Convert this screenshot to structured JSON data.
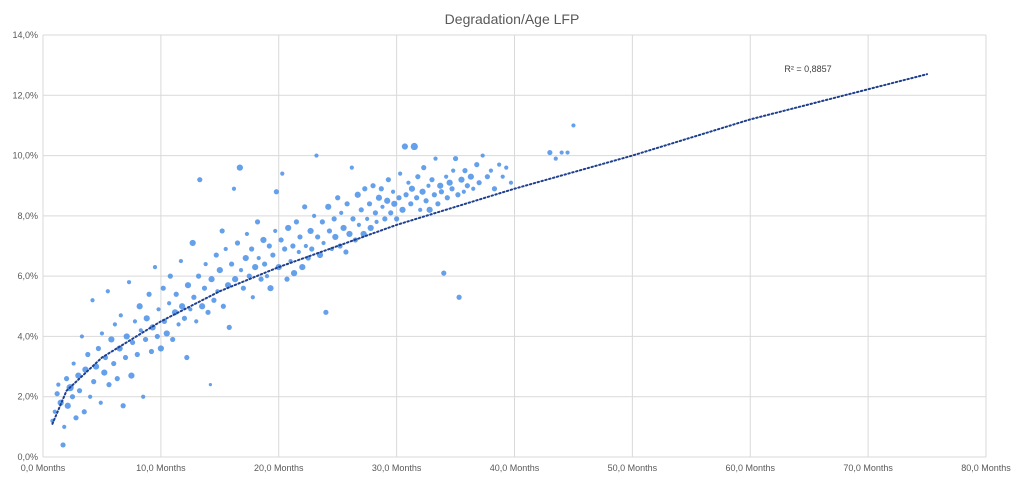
{
  "chart_data": {
    "type": "scatter",
    "title": "Degradation/Age LFP",
    "xlabel": "",
    "ylabel": "",
    "xlim": [
      0,
      80
    ],
    "ylim": [
      0,
      14
    ],
    "x_ticks": [
      0,
      10,
      20,
      30,
      40,
      50,
      60,
      70,
      80
    ],
    "y_ticks": [
      0,
      2,
      4,
      6,
      8,
      10,
      12,
      14
    ],
    "x_tick_labels": [
      "0,0 Months",
      "10,0 Months",
      "20,0 Months",
      "30,0 Months",
      "40,0 Months",
      "50,0 Months",
      "60,0 Months",
      "70,0 Months",
      "80,0 Months"
    ],
    "y_tick_labels": [
      "0,0%",
      "2,0%",
      "4,0%",
      "6,0%",
      "8,0%",
      "10,0%",
      "12,0%",
      "14,0%"
    ],
    "grid": true,
    "legend": "none",
    "point_color": "#4a8fe7",
    "trend_color": "#1f3f8f",
    "trendline": {
      "type": "logarithmic",
      "x": [
        0.8,
        2,
        5,
        10,
        15,
        20,
        25,
        30,
        40,
        50,
        60,
        75
      ],
      "y": [
        1.1,
        2.2,
        3.3,
        4.5,
        5.5,
        6.3,
        7.0,
        7.7,
        8.9,
        10.0,
        11.2,
        12.7
      ]
    },
    "r_squared_label": "R² = 0,8857",
    "points": [
      [
        0.8,
        1.2,
        3
      ],
      [
        1.0,
        1.5,
        3
      ],
      [
        1.2,
        2.1,
        4
      ],
      [
        1.3,
        2.4,
        3
      ],
      [
        1.5,
        1.8,
        5
      ],
      [
        1.7,
        0.4,
        4
      ],
      [
        1.8,
        1.0,
        3
      ],
      [
        2.0,
        2.6,
        4
      ],
      [
        2.1,
        1.7,
        5
      ],
      [
        2.3,
        2.3,
        6
      ],
      [
        2.5,
        2.0,
        4
      ],
      [
        2.6,
        3.1,
        3
      ],
      [
        2.8,
        1.3,
        4
      ],
      [
        3.0,
        2.7,
        5
      ],
      [
        3.1,
        2.2,
        4
      ],
      [
        3.3,
        4.0,
        3
      ],
      [
        3.5,
        1.5,
        4
      ],
      [
        3.6,
        2.9,
        5
      ],
      [
        3.8,
        3.4,
        4
      ],
      [
        4.0,
        2.0,
        3
      ],
      [
        4.2,
        5.2,
        3
      ],
      [
        4.3,
        2.5,
        4
      ],
      [
        4.5,
        3.0,
        5
      ],
      [
        4.7,
        3.6,
        4
      ],
      [
        4.9,
        1.8,
        3
      ],
      [
        5.0,
        4.1,
        3
      ],
      [
        5.2,
        2.8,
        5
      ],
      [
        5.3,
        3.3,
        4
      ],
      [
        5.5,
        5.5,
        3
      ],
      [
        5.6,
        2.4,
        4
      ],
      [
        5.8,
        3.9,
        5
      ],
      [
        6.0,
        3.1,
        4
      ],
      [
        6.1,
        4.4,
        3
      ],
      [
        6.3,
        2.6,
        4
      ],
      [
        6.5,
        3.6,
        5
      ],
      [
        6.6,
        4.7,
        3
      ],
      [
        6.8,
        1.7,
        4
      ],
      [
        7.0,
        3.3,
        4
      ],
      [
        7.1,
        4.0,
        5
      ],
      [
        7.3,
        5.8,
        3
      ],
      [
        7.5,
        2.7,
        5
      ],
      [
        7.6,
        3.8,
        4
      ],
      [
        7.8,
        4.5,
        3
      ],
      [
        8.0,
        3.4,
        4
      ],
      [
        8.2,
        5.0,
        5
      ],
      [
        8.3,
        4.2,
        3
      ],
      [
        8.5,
        2.0,
        3
      ],
      [
        8.7,
        3.9,
        4
      ],
      [
        8.8,
        4.6,
        5
      ],
      [
        9.0,
        5.4,
        4
      ],
      [
        9.2,
        3.5,
        4
      ],
      [
        9.3,
        4.3,
        5
      ],
      [
        9.5,
        6.3,
        3
      ],
      [
        9.7,
        4.0,
        4
      ],
      [
        9.8,
        4.9,
        3
      ],
      [
        10.0,
        3.6,
        5
      ],
      [
        10.2,
        5.6,
        4
      ],
      [
        10.3,
        4.5,
        4
      ],
      [
        10.5,
        4.1,
        5
      ],
      [
        10.7,
        5.1,
        3
      ],
      [
        10.8,
        6.0,
        4
      ],
      [
        11.0,
        3.9,
        4
      ],
      [
        11.2,
        4.8,
        5
      ],
      [
        11.3,
        5.4,
        4
      ],
      [
        11.5,
        4.4,
        3
      ],
      [
        11.7,
        6.5,
        3
      ],
      [
        11.8,
        5.0,
        5
      ],
      [
        12.0,
        4.6,
        4
      ],
      [
        12.2,
        3.3,
        4
      ],
      [
        12.3,
        5.7,
        5
      ],
      [
        12.5,
        4.9,
        3
      ],
      [
        12.7,
        7.1,
        5
      ],
      [
        12.8,
        5.3,
        4
      ],
      [
        13.0,
        4.5,
        3
      ],
      [
        13.2,
        6.0,
        4
      ],
      [
        13.3,
        9.2,
        4
      ],
      [
        13.5,
        5.0,
        5
      ],
      [
        13.7,
        5.6,
        4
      ],
      [
        13.8,
        6.4,
        3
      ],
      [
        14.0,
        4.8,
        4
      ],
      [
        14.2,
        2.4,
        2
      ],
      [
        14.3,
        5.9,
        5
      ],
      [
        14.5,
        5.2,
        4
      ],
      [
        14.7,
        6.7,
        4
      ],
      [
        14.8,
        5.5,
        3
      ],
      [
        15.0,
        6.2,
        5
      ],
      [
        15.2,
        7.5,
        4
      ],
      [
        15.3,
        5.0,
        4
      ],
      [
        15.5,
        6.9,
        3
      ],
      [
        15.7,
        5.7,
        5
      ],
      [
        15.8,
        4.3,
        4
      ],
      [
        16.0,
        6.4,
        4
      ],
      [
        16.2,
        8.9,
        3
      ],
      [
        16.3,
        5.9,
        5
      ],
      [
        16.5,
        7.1,
        4
      ],
      [
        16.7,
        9.6,
        5
      ],
      [
        16.8,
        6.2,
        3
      ],
      [
        17.0,
        5.6,
        4
      ],
      [
        17.2,
        6.6,
        5
      ],
      [
        17.3,
        7.4,
        3
      ],
      [
        17.5,
        6.0,
        4
      ],
      [
        17.7,
        6.9,
        4
      ],
      [
        17.8,
        5.3,
        3
      ],
      [
        18.0,
        6.3,
        5
      ],
      [
        18.2,
        7.8,
        4
      ],
      [
        18.3,
        6.6,
        3
      ],
      [
        18.5,
        5.9,
        4
      ],
      [
        18.7,
        7.2,
        5
      ],
      [
        18.8,
        6.4,
        4
      ],
      [
        19.0,
        6.0,
        3
      ],
      [
        19.2,
        7.0,
        4
      ],
      [
        19.3,
        5.6,
        5
      ],
      [
        19.5,
        6.7,
        4
      ],
      [
        19.7,
        7.5,
        3
      ],
      [
        19.8,
        8.8,
        4
      ],
      [
        20.0,
        6.3,
        5
      ],
      [
        20.2,
        7.2,
        4
      ],
      [
        20.3,
        9.4,
        3
      ],
      [
        20.5,
        6.9,
        4
      ],
      [
        20.7,
        5.9,
        4
      ],
      [
        20.8,
        7.6,
        5
      ],
      [
        21.0,
        6.5,
        3
      ],
      [
        21.2,
        7.0,
        4
      ],
      [
        21.3,
        6.1,
        5
      ],
      [
        21.5,
        7.8,
        4
      ],
      [
        21.7,
        6.8,
        3
      ],
      [
        21.8,
        7.3,
        4
      ],
      [
        22.0,
        6.3,
        5
      ],
      [
        22.2,
        8.3,
        4
      ],
      [
        22.3,
        7.0,
        3
      ],
      [
        22.5,
        6.6,
        4
      ],
      [
        22.7,
        7.5,
        5
      ],
      [
        22.8,
        6.9,
        4
      ],
      [
        23.0,
        8.0,
        3
      ],
      [
        23.2,
        10.0,
        3
      ],
      [
        23.3,
        7.3,
        4
      ],
      [
        23.5,
        6.7,
        5
      ],
      [
        23.7,
        7.8,
        4
      ],
      [
        23.8,
        7.1,
        3
      ],
      [
        24.0,
        4.8,
        4
      ],
      [
        24.2,
        8.3,
        5
      ],
      [
        24.3,
        7.5,
        4
      ],
      [
        24.5,
        6.9,
        3
      ],
      [
        24.7,
        7.9,
        4
      ],
      [
        24.8,
        7.3,
        5
      ],
      [
        25.0,
        8.6,
        4
      ],
      [
        25.2,
        7.0,
        4
      ],
      [
        25.3,
        8.1,
        3
      ],
      [
        25.5,
        7.6,
        5
      ],
      [
        25.7,
        6.8,
        4
      ],
      [
        25.8,
        8.4,
        4
      ],
      [
        26.0,
        7.4,
        5
      ],
      [
        26.2,
        9.6,
        3
      ],
      [
        26.3,
        7.9,
        4
      ],
      [
        26.5,
        7.2,
        4
      ],
      [
        26.7,
        8.7,
        5
      ],
      [
        26.8,
        7.7,
        3
      ],
      [
        27.0,
        8.2,
        4
      ],
      [
        27.2,
        7.4,
        5
      ],
      [
        27.3,
        8.9,
        4
      ],
      [
        27.5,
        7.9,
        3
      ],
      [
        27.7,
        8.4,
        4
      ],
      [
        27.8,
        7.6,
        5
      ],
      [
        28.0,
        9.0,
        4
      ],
      [
        28.2,
        8.1,
        4
      ],
      [
        28.3,
        7.8,
        3
      ],
      [
        28.5,
        8.6,
        5
      ],
      [
        28.7,
        8.9,
        4
      ],
      [
        28.8,
        8.3,
        3
      ],
      [
        29.0,
        7.9,
        4
      ],
      [
        29.2,
        8.5,
        5
      ],
      [
        29.3,
        9.2,
        4
      ],
      [
        29.5,
        8.1,
        4
      ],
      [
        29.7,
        8.8,
        3
      ],
      [
        29.8,
        8.4,
        5
      ],
      [
        30.0,
        7.9,
        4
      ],
      [
        30.2,
        8.6,
        4
      ],
      [
        30.3,
        9.4,
        3
      ],
      [
        30.5,
        8.2,
        5
      ],
      [
        30.7,
        10.3,
        5
      ],
      [
        30.8,
        8.7,
        4
      ],
      [
        31.0,
        9.1,
        3
      ],
      [
        31.2,
        8.4,
        4
      ],
      [
        31.3,
        8.9,
        5
      ],
      [
        31.5,
        10.3,
        6
      ],
      [
        31.7,
        8.6,
        4
      ],
      [
        31.8,
        9.3,
        4
      ],
      [
        32.0,
        8.2,
        3
      ],
      [
        32.2,
        8.8,
        5
      ],
      [
        32.3,
        9.6,
        4
      ],
      [
        32.5,
        8.5,
        4
      ],
      [
        32.7,
        9.0,
        3
      ],
      [
        32.8,
        8.2,
        5
      ],
      [
        33.0,
        9.2,
        4
      ],
      [
        33.2,
        8.7,
        4
      ],
      [
        33.3,
        9.9,
        3
      ],
      [
        33.5,
        8.4,
        4
      ],
      [
        33.7,
        9.0,
        5
      ],
      [
        33.8,
        8.8,
        4
      ],
      [
        34.0,
        6.1,
        4
      ],
      [
        34.2,
        9.3,
        3
      ],
      [
        34.3,
        8.6,
        4
      ],
      [
        34.5,
        9.1,
        5
      ],
      [
        34.7,
        8.9,
        4
      ],
      [
        34.8,
        9.5,
        3
      ],
      [
        35.0,
        9.9,
        4
      ],
      [
        35.2,
        8.7,
        4
      ],
      [
        35.3,
        5.3,
        4
      ],
      [
        35.5,
        9.2,
        5
      ],
      [
        35.7,
        8.8,
        3
      ],
      [
        35.8,
        9.5,
        4
      ],
      [
        36.0,
        9.0,
        4
      ],
      [
        36.3,
        9.3,
        5
      ],
      [
        36.5,
        8.9,
        3
      ],
      [
        36.8,
        9.7,
        4
      ],
      [
        37.0,
        9.1,
        4
      ],
      [
        37.3,
        10.0,
        3
      ],
      [
        37.7,
        9.3,
        4
      ],
      [
        38.0,
        9.5,
        3
      ],
      [
        38.3,
        8.9,
        4
      ],
      [
        38.7,
        9.7,
        3
      ],
      [
        39.0,
        9.3,
        3
      ],
      [
        39.3,
        9.6,
        3
      ],
      [
        39.7,
        9.1,
        3
      ],
      [
        43.0,
        10.1,
        4
      ],
      [
        43.5,
        9.9,
        3
      ],
      [
        44.0,
        10.1,
        3
      ],
      [
        44.5,
        10.1,
        3
      ],
      [
        45.0,
        11.0,
        3
      ]
    ]
  }
}
